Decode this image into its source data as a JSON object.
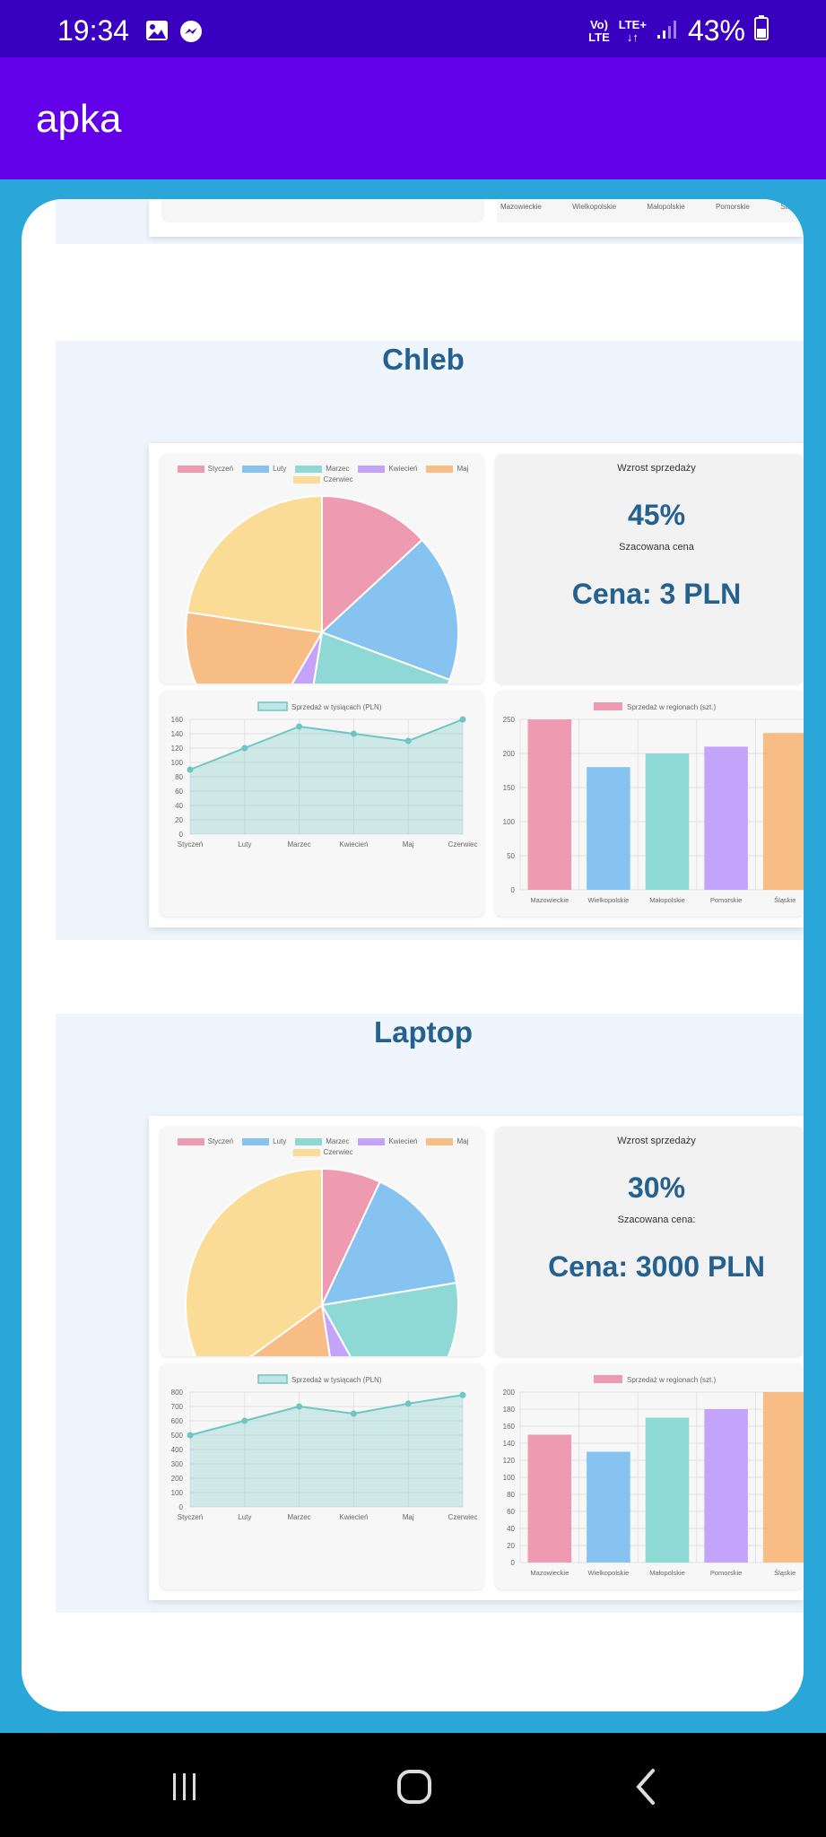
{
  "status_bar": {
    "time": "19:34",
    "network_line1": "Vo)",
    "network_line2": "LTE",
    "lte_line1": "LTE+",
    "lte_line2": "↓↑",
    "battery": "43%",
    "icons": [
      "gallery-icon",
      "messenger-icon",
      "signal-icon",
      "battery-icon"
    ]
  },
  "app_bar": {
    "title": "apka"
  },
  "prev_section": {
    "bar_labels": [
      "Mazowieckie",
      "Wielkopolskie",
      "Małopolskie",
      "Pomorskie",
      "Śląskie"
    ]
  },
  "products": [
    {
      "title": "Chleb",
      "growth_label": "Wzrost sprzedaży",
      "growth_value": "45%",
      "price_label": "Szacowana cena",
      "price": "Cena: 3 PLN",
      "chart_data": [
        {
          "type": "pie",
          "categories": [
            "Styczeń",
            "Luty",
            "Marzec",
            "Kwiecień",
            "Maj",
            "Czerwiec"
          ],
          "values": [
            90,
            120,
            150,
            40,
            130,
            155
          ],
          "colors": [
            "#ee9ab0",
            "#86c3f0",
            "#8ed8d6",
            "#c4a4fb",
            "#f8bd85",
            "#fbdc96"
          ],
          "legend": "top"
        },
        {
          "type": "area",
          "series": [
            {
              "name": "Sprzedaż w tysiącach (PLN)",
              "values": [
                90,
                120,
                150,
                140,
                130,
                160
              ]
            }
          ],
          "categories": [
            "Styczeń",
            "Luty",
            "Marzec",
            "Kwiecień",
            "Maj",
            "Czerwiec"
          ],
          "ylim": [
            0,
            160
          ],
          "yticks": [
            0,
            20,
            40,
            60,
            80,
            100,
            120,
            140,
            160
          ],
          "color": "#6ec6c4"
        },
        {
          "type": "bar",
          "series": [
            {
              "name": "Sprzedaż w regionach (szt.)",
              "values": [
                250,
                180,
                200,
                210,
                230
              ]
            }
          ],
          "categories": [
            "Mazowieckie",
            "Wielkopolskie",
            "Małopolskie",
            "Pomorskie",
            "Śląskie"
          ],
          "ylim": [
            0,
            250
          ],
          "yticks": [
            0,
            50,
            100,
            150,
            200,
            250
          ],
          "colors": [
            "#ee9ab0",
            "#86c3f0",
            "#8ed8d6",
            "#c4a4fb",
            "#f8bd85"
          ]
        }
      ]
    },
    {
      "title": "Laptop",
      "growth_label": "Wzrost sprzedaży",
      "growth_value": "30%",
      "price_label": "Szacowana cena:",
      "price": "Cena: 3000 PLN",
      "chart_data": [
        {
          "type": "pie",
          "categories": [
            "Styczeń",
            "Luty",
            "Marzec",
            "Kwiecień",
            "Maj",
            "Czerwiec"
          ],
          "values": [
            50,
            110,
            140,
            40,
            125,
            250
          ],
          "colors": [
            "#ee9ab0",
            "#86c3f0",
            "#8ed8d6",
            "#c4a4fb",
            "#f8bd85",
            "#fbdc96"
          ],
          "legend": "top"
        },
        {
          "type": "area",
          "series": [
            {
              "name": "Sprzedaż w tysiącach (PLN)",
              "values": [
                500,
                600,
                700,
                650,
                720,
                780
              ]
            }
          ],
          "categories": [
            "Styczeń",
            "Luty",
            "Marzec",
            "Kwiecień",
            "Maj",
            "Czerwiec"
          ],
          "ylim": [
            0,
            800
          ],
          "yticks": [
            0,
            100,
            200,
            300,
            400,
            500,
            600,
            700,
            800
          ],
          "color": "#6ec6c4"
        },
        {
          "type": "bar",
          "series": [
            {
              "name": "Sprzedaż w regionach (szt.)",
              "values": [
                150,
                130,
                170,
                180,
                200
              ]
            }
          ],
          "categories": [
            "Mazowieckie",
            "Wielkopolskie",
            "Małopolskie",
            "Pomorskie",
            "Śląskie"
          ],
          "ylim": [
            0,
            200
          ],
          "yticks": [
            0,
            20,
            40,
            60,
            80,
            100,
            120,
            140,
            160,
            180,
            200
          ],
          "colors": [
            "#ee9ab0",
            "#86c3f0",
            "#8ed8d6",
            "#c4a4fb",
            "#f8bd85"
          ]
        }
      ]
    }
  ],
  "nav": {
    "buttons": [
      "recent-apps",
      "home",
      "back"
    ]
  }
}
